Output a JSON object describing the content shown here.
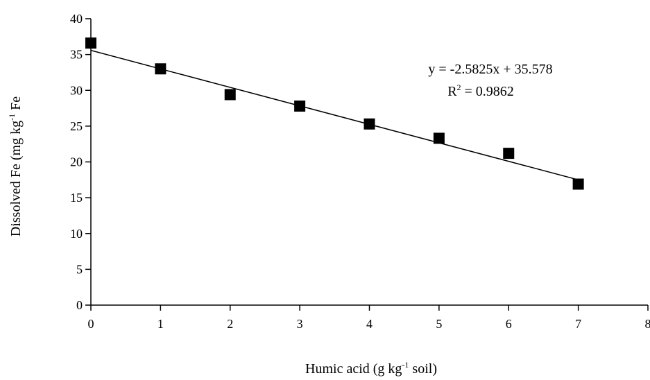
{
  "chart_data": {
    "type": "scatter",
    "title": "",
    "xlabel": {
      "main": "Humic acid (g kg",
      "sup": "-1",
      "tail": " soil)"
    },
    "ylabel": {
      "main": "Dissolved Fe (mg kg",
      "sup": "-1",
      "tail": " Fe"
    },
    "xlim": [
      0,
      8
    ],
    "ylim": [
      0,
      40
    ],
    "x_ticks": [
      "0",
      "1",
      "2",
      "3",
      "4",
      "5",
      "6",
      "7",
      "8"
    ],
    "y_ticks": [
      "0",
      "5",
      "10",
      "15",
      "20",
      "25",
      "30",
      "35",
      "40"
    ],
    "grid": false,
    "series": [
      {
        "marker": "square",
        "color": "#000000",
        "x": [
          0,
          1,
          2,
          3,
          4,
          5,
          6,
          7
        ],
        "y": [
          36.6,
          33.0,
          29.4,
          27.8,
          25.3,
          23.3,
          21.2,
          16.9
        ]
      }
    ],
    "trendline": {
      "slope": -2.5825,
      "intercept": 35.578,
      "x_range": [
        0,
        7
      ],
      "color": "#000000"
    },
    "annotations": {
      "equation": "y = -2.5825x + 35.578",
      "r2_prefix": "R",
      "r2_sup": "2",
      "r2_value": " = 0.9862"
    }
  }
}
